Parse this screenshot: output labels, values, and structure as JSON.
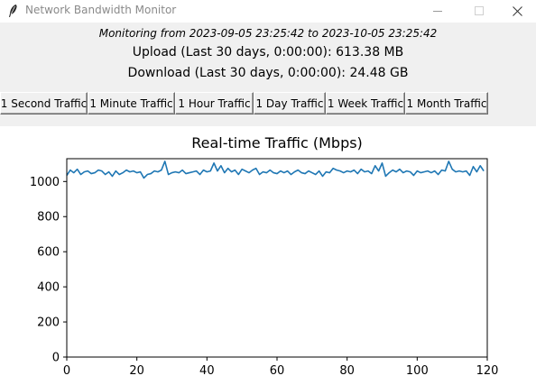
{
  "window": {
    "title": "Network Bandwidth Monitor"
  },
  "header": {
    "monitor_range": "Monitoring from 2023-09-05 23:25:42 to 2023-10-05 23:25:42",
    "upload": "Upload (Last 30 days, 0:00:00): 613.38 MB",
    "download": "Download (Last 30 days, 0:00:00): 24.48 GB"
  },
  "buttons": [
    {
      "label": "1 Second Traffic"
    },
    {
      "label": "1 Minute Traffic"
    },
    {
      "label": "1 Hour Traffic"
    },
    {
      "label": "1 Day Traffic"
    },
    {
      "label": "1 Week Traffic"
    },
    {
      "label": "1 Month Traffic"
    }
  ],
  "chart_data": {
    "type": "line",
    "title": "Real-time Traffic (Mbps)",
    "xlabel": "",
    "ylabel": "",
    "xlim": [
      0,
      120
    ],
    "ylim": [
      0,
      1130
    ],
    "x_ticks": [
      0,
      20,
      40,
      60,
      80,
      100,
      120
    ],
    "y_ticks": [
      0,
      200,
      400,
      600,
      800,
      1000
    ],
    "grid": false,
    "series": [
      {
        "color": "#1f77b4",
        "x": [
          0,
          1,
          2,
          3,
          4,
          5,
          6,
          7,
          8,
          9,
          10,
          11,
          12,
          13,
          14,
          15,
          16,
          17,
          18,
          19,
          20,
          21,
          22,
          23,
          24,
          25,
          26,
          27,
          28,
          29,
          30,
          31,
          32,
          33,
          34,
          35,
          36,
          37,
          38,
          39,
          40,
          41,
          42,
          43,
          44,
          45,
          46,
          47,
          48,
          49,
          50,
          51,
          52,
          53,
          54,
          55,
          56,
          57,
          58,
          59,
          60,
          61,
          62,
          63,
          64,
          65,
          66,
          67,
          68,
          69,
          70,
          71,
          72,
          73,
          74,
          75,
          76,
          77,
          78,
          79,
          80,
          81,
          82,
          83,
          84,
          85,
          86,
          87,
          88,
          89,
          90,
          91,
          92,
          93,
          94,
          95,
          96,
          97,
          98,
          99,
          100,
          101,
          102,
          103,
          104,
          105,
          106,
          107,
          108,
          109,
          110,
          111,
          112,
          113,
          114,
          115,
          116,
          117,
          118,
          119
        ],
        "values": [
          1035,
          1065,
          1050,
          1070,
          1040,
          1055,
          1060,
          1045,
          1050,
          1065,
          1060,
          1040,
          1055,
          1030,
          1060,
          1040,
          1050,
          1065,
          1055,
          1060,
          1050,
          1055,
          1020,
          1040,
          1045,
          1060,
          1055,
          1065,
          1115,
          1040,
          1050,
          1055,
          1050,
          1065,
          1045,
          1050,
          1055,
          1060,
          1040,
          1065,
          1055,
          1060,
          1105,
          1060,
          1090,
          1050,
          1075,
          1055,
          1065,
          1040,
          1070,
          1060,
          1050,
          1065,
          1075,
          1040,
          1055,
          1050,
          1065,
          1050,
          1045,
          1060,
          1050,
          1060,
          1040,
          1055,
          1065,
          1050,
          1045,
          1060,
          1050,
          1040,
          1060,
          1030,
          1055,
          1050,
          1075,
          1065,
          1060,
          1050,
          1060,
          1055,
          1065,
          1045,
          1070,
          1055,
          1060,
          1045,
          1090,
          1060,
          1105,
          1030,
          1050,
          1065,
          1055,
          1070,
          1050,
          1060,
          1055,
          1035,
          1060,
          1050,
          1055,
          1060,
          1050,
          1060,
          1040,
          1065,
          1060,
          1115,
          1070,
          1055,
          1060,
          1055,
          1060,
          1035,
          1085,
          1055,
          1090,
          1060
        ]
      }
    ]
  },
  "colors": {
    "header_bg": "#f0f0f0",
    "line": "#1f77b4"
  }
}
